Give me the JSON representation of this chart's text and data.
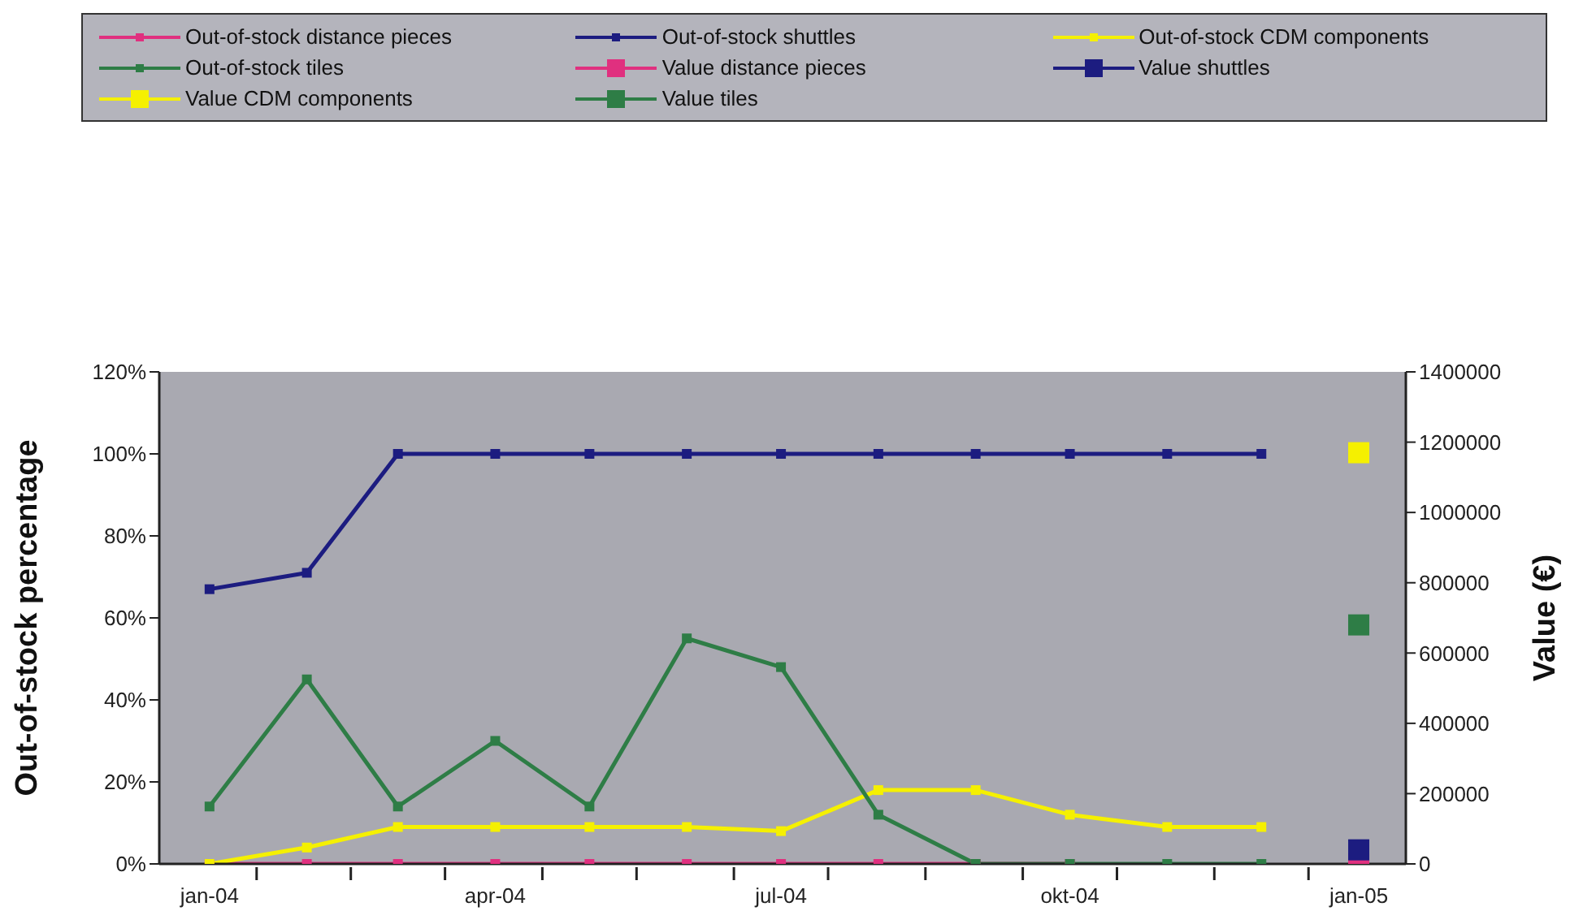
{
  "chart_data": {
    "type": "line",
    "ylabel": "Out-of-stock percentage",
    "y2label": "Value (€)",
    "legend": "top",
    "marker": "square",
    "line_style": "solid",
    "x": [
      "2004-01-01",
      "2004-02-01",
      "2004-03-01",
      "2004-04-01",
      "2004-05-01",
      "2004-06-01",
      "2004-07-01",
      "2004-08-01",
      "2004-09-01",
      "2004-10-01",
      "2004-11-01",
      "2004-12-01"
    ],
    "xlim": [
      "2003-12-16",
      "2005-01-16"
    ],
    "xticks": [
      {
        "value": "2004-01-01",
        "label": "jan-04"
      },
      {
        "value": "2004-04-01",
        "label": "apr-04"
      },
      {
        "value": "2004-07-01",
        "label": "jul-04"
      },
      {
        "value": "2004-10-01",
        "label": "okt-04"
      },
      {
        "value": "2005-01-01",
        "label": "jan-05"
      },
      {
        "value": "2004-01-16",
        "label": null
      },
      {
        "value": "2004-02-15",
        "label": null
      },
      {
        "value": "2004-03-16",
        "label": null
      },
      {
        "value": "2004-04-16",
        "label": null
      },
      {
        "value": "2004-05-16",
        "label": null
      },
      {
        "value": "2004-06-16",
        "label": null
      },
      {
        "value": "2004-07-16",
        "label": null
      },
      {
        "value": "2004-08-16",
        "label": null
      },
      {
        "value": "2004-09-16",
        "label": null
      },
      {
        "value": "2004-10-16",
        "label": null
      },
      {
        "value": "2004-11-16",
        "label": null
      },
      {
        "value": "2004-12-16",
        "label": null
      }
    ],
    "ylim": [
      0,
      120
    ],
    "yticks": [
      {
        "value": 0,
        "label": "0%"
      },
      {
        "value": 20,
        "label": "20%"
      },
      {
        "value": 40,
        "label": "40%"
      },
      {
        "value": 60,
        "label": "60%"
      },
      {
        "value": 80,
        "label": "80%"
      },
      {
        "value": 100,
        "label": "100%"
      },
      {
        "value": 120,
        "label": "120%"
      }
    ],
    "y2lim": [
      0,
      1400000
    ],
    "y2ticks": [
      0,
      200000,
      400000,
      600000,
      800000,
      1000000,
      1200000,
      1400000
    ],
    "series": [
      {
        "name": "Out-of-stock distance pieces",
        "color": "#e0307f",
        "values": [
          0,
          0,
          0,
          0,
          0,
          0,
          0,
          0,
          0,
          0,
          null,
          null
        ]
      },
      {
        "name": "Out-of-stock shuttles",
        "color": "#1c1c80",
        "values": [
          67,
          71,
          100,
          100,
          100,
          100,
          100,
          100,
          100,
          100,
          100,
          100
        ]
      },
      {
        "name": "Out-of-stock CDM components",
        "color": "#f5f000",
        "values": [
          0,
          4,
          9,
          9,
          9,
          9,
          8,
          18,
          18,
          12,
          9,
          9
        ]
      },
      {
        "name": "Out-of-stock tiles",
        "color": "#2e7d46",
        "values": [
          14,
          45,
          14,
          30,
          14,
          55,
          48,
          12,
          0,
          0,
          0,
          0
        ]
      },
      {
        "name": "Value distance pieces",
        "color": "#e0307f",
        "axis": "y2",
        "x": [
          "2005-01-01"
        ],
        "values": [
          0
        ]
      },
      {
        "name": "Value shuttles",
        "color": "#1c1c80",
        "axis": "y2",
        "x": [
          "2005-01-01"
        ],
        "values": [
          40000
        ]
      },
      {
        "name": "Value CDM components",
        "color": "#f5f000",
        "axis": "y2",
        "x": [
          "2005-01-01"
        ],
        "values": [
          1170000
        ]
      },
      {
        "name": "Value tiles",
        "color": "#2e7d46",
        "axis": "y2",
        "x": [
          "2005-01-01"
        ],
        "values": [
          680000
        ]
      }
    ]
  }
}
